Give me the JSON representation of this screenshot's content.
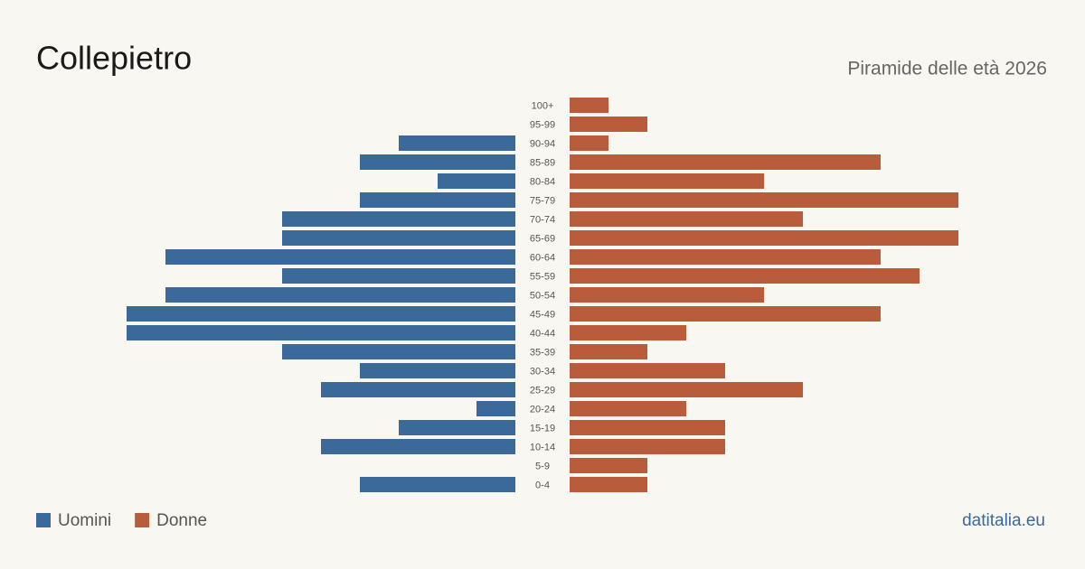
{
  "chart_data": {
    "type": "bar",
    "title": "Collepietro",
    "subtitle": "Piramide delle età 2026",
    "source": "datitalia.eu",
    "categories": [
      "100+",
      "95-99",
      "90-94",
      "85-89",
      "80-84",
      "75-79",
      "70-74",
      "65-69",
      "60-64",
      "55-59",
      "50-54",
      "45-49",
      "40-44",
      "35-39",
      "30-34",
      "25-29",
      "20-24",
      "15-19",
      "10-14",
      "5-9",
      "0-4"
    ],
    "series": [
      {
        "name": "Uomini",
        "color": "#3b6a9a",
        "values": [
          0,
          0,
          3,
          4,
          2,
          4,
          6,
          6,
          9,
          6,
          9,
          10,
          10,
          6,
          4,
          5,
          1,
          3,
          5,
          0,
          4
        ]
      },
      {
        "name": "Donne",
        "color": "#b95c3c",
        "values": [
          1,
          2,
          1,
          8,
          5,
          10,
          6,
          10,
          8,
          9,
          5,
          8,
          3,
          2,
          4,
          6,
          3,
          4,
          4,
          2,
          2
        ]
      }
    ]
  }
}
